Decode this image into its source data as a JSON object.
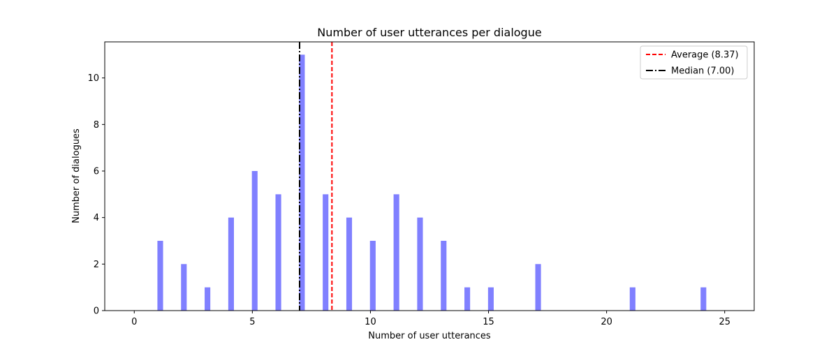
{
  "chart_data": {
    "type": "bar",
    "title": "Number of user utterances per dialogue",
    "xlabel": "Number of user utterances",
    "ylabel": "Number of dialogues",
    "xlim": [
      -1.25,
      26.25
    ],
    "ylim": [
      0,
      11.55
    ],
    "xticks": [
      0,
      5,
      10,
      15,
      20,
      25
    ],
    "yticks": [
      0,
      2,
      4,
      6,
      8,
      10
    ],
    "grid": false,
    "legend_position": "top-right",
    "bar_color": "#8080ff",
    "bars": [
      {
        "x": 1.1,
        "value": 3
      },
      {
        "x": 2.1,
        "value": 2
      },
      {
        "x": 3.1,
        "value": 1
      },
      {
        "x": 4.1,
        "value": 4
      },
      {
        "x": 5.1,
        "value": 6
      },
      {
        "x": 6.1,
        "value": 5
      },
      {
        "x": 7.1,
        "value": 11
      },
      {
        "x": 8.1,
        "value": 5
      },
      {
        "x": 9.1,
        "value": 4
      },
      {
        "x": 10.1,
        "value": 3
      },
      {
        "x": 11.1,
        "value": 5
      },
      {
        "x": 12.1,
        "value": 4
      },
      {
        "x": 13.1,
        "value": 3
      },
      {
        "x": 14.1,
        "value": 1
      },
      {
        "x": 15.1,
        "value": 1
      },
      {
        "x": 17.1,
        "value": 2
      },
      {
        "x": 21.1,
        "value": 1
      },
      {
        "x": 24.1,
        "value": 1
      }
    ],
    "reference_lines": [
      {
        "name": "Average (8.37)",
        "x": 8.37,
        "color": "#ff0000",
        "style": "dashed"
      },
      {
        "name": "Median (7.00)",
        "x": 7.0,
        "color": "#000000",
        "style": "dashdot"
      }
    ]
  }
}
